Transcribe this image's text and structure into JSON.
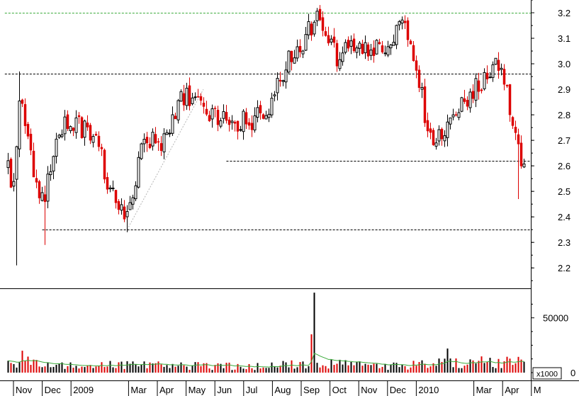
{
  "chart_data": [
    {
      "type": "candlestick",
      "panel": "price",
      "ylim": [
        2.12,
        3.25
      ],
      "y_ticks": [
        "2.2",
        "2.3",
        "2.4",
        "2.5",
        "2.6",
        "2.7",
        "2.8",
        "2.9",
        "3.0",
        "3.1",
        "3.2"
      ],
      "x_ticks": [
        {
          "label": "Nov",
          "month_index": 0
        },
        {
          "label": "Dec",
          "month_index": 1
        },
        {
          "label": "2009",
          "month_index": 2
        },
        {
          "label": "Mar",
          "month_index": 4
        },
        {
          "label": "Apr",
          "month_index": 5
        },
        {
          "label": "May",
          "month_index": 6
        },
        {
          "label": "Jun",
          "month_index": 7
        },
        {
          "label": "Jul",
          "month_index": 8
        },
        {
          "label": "Aug",
          "month_index": 9
        },
        {
          "label": "Sep",
          "month_index": 10
        },
        {
          "label": "Oct",
          "month_index": 11
        },
        {
          "label": "Nov",
          "month_index": 12
        },
        {
          "label": "Dec",
          "month_index": 13
        },
        {
          "label": "2010",
          "month_index": 14
        },
        {
          "label": "Mar",
          "month_index": 16
        },
        {
          "label": "Apr",
          "month_index": 17
        },
        {
          "label": "M",
          "month_index": 18
        }
      ],
      "price_path_monthly": [
        [
          -0.2,
          2.6
        ],
        [
          0.0,
          2.5
        ],
        [
          0.2,
          2.85
        ],
        [
          0.5,
          2.7
        ],
        [
          0.9,
          2.48
        ],
        [
          1.0,
          2.45
        ],
        [
          1.2,
          2.55
        ],
        [
          1.5,
          2.7
        ],
        [
          1.8,
          2.78
        ],
        [
          2.2,
          2.76
        ],
        [
          2.6,
          2.72
        ],
        [
          3.0,
          2.65
        ],
        [
          3.3,
          2.52
        ],
        [
          3.6,
          2.46
        ],
        [
          3.8,
          2.38
        ],
        [
          4.1,
          2.45
        ],
        [
          4.4,
          2.68
        ],
        [
          4.8,
          2.72
        ],
        [
          5.1,
          2.7
        ],
        [
          5.4,
          2.76
        ],
        [
          5.8,
          2.88
        ],
        [
          6.2,
          2.86
        ],
        [
          6.6,
          2.82
        ],
        [
          7.0,
          2.8
        ],
        [
          7.5,
          2.78
        ],
        [
          8.0,
          2.77
        ],
        [
          8.4,
          2.79
        ],
        [
          8.8,
          2.8
        ],
        [
          9.2,
          2.92
        ],
        [
          9.6,
          3.02
        ],
        [
          10.0,
          3.08
        ],
        [
          10.4,
          3.16
        ],
        [
          10.6,
          3.19
        ],
        [
          10.9,
          3.1
        ],
        [
          11.2,
          3.02
        ],
        [
          11.6,
          3.06
        ],
        [
          12.0,
          3.08
        ],
        [
          12.4,
          3.06
        ],
        [
          12.8,
          3.08
        ],
        [
          13.2,
          3.1
        ],
        [
          13.5,
          3.14
        ],
        [
          13.8,
          3.08
        ],
        [
          14.1,
          2.92
        ],
        [
          14.4,
          2.72
        ],
        [
          14.8,
          2.7
        ],
        [
          15.2,
          2.78
        ],
        [
          15.6,
          2.86
        ],
        [
          16.0,
          2.9
        ],
        [
          16.4,
          2.96
        ],
        [
          16.8,
          2.98
        ],
        [
          17.1,
          2.95
        ],
        [
          17.4,
          2.72
        ],
        [
          17.6,
          2.62
        ],
        [
          17.8,
          2.58
        ]
      ],
      "spikes": [
        {
          "month_index": 0.08,
          "low": 2.21
        },
        {
          "month_index": 0.18,
          "high": 2.97
        },
        {
          "month_index": 1.05,
          "low": 2.29
        },
        {
          "month_index": 3.9,
          "low": 2.34
        },
        {
          "month_index": 10.6,
          "high": 3.21
        },
        {
          "month_index": 13.6,
          "high": 3.19
        },
        {
          "month_index": 17.5,
          "low": 2.47
        }
      ],
      "support_lines": [
        {
          "value": 3.2,
          "from_month": -0.3,
          "to_month": 18.2,
          "color": "#3aaa3a"
        },
        {
          "value": 2.96,
          "from_month": -0.3,
          "to_month": 18.2,
          "color": "#000000"
        },
        {
          "value": 2.62,
          "from_month": 7.4,
          "to_month": 18.2,
          "color": "#000000"
        },
        {
          "value": 2.35,
          "from_month": 1.0,
          "to_month": 18.2,
          "color": "#000000"
        }
      ],
      "trend_lines": [
        {
          "from": [
            3.95,
            2.35
          ],
          "to": [
            6.6,
            2.9
          ],
          "color": "#b5b5b5"
        }
      ],
      "colors": {
        "up": "#000000",
        "down": "#dd0000",
        "line_green": "#3aaa3a"
      }
    },
    {
      "type": "bar",
      "panel": "volume",
      "ylim": [
        0,
        75000
      ],
      "y_ticks": [
        "50000",
        "0"
      ],
      "unit_label": "x1000",
      "volume_path_monthly": [
        [
          -0.2,
          7500
        ],
        [
          0.3,
          11000
        ],
        [
          1.0,
          7000
        ],
        [
          2.0,
          6000
        ],
        [
          3.0,
          6500
        ],
        [
          4.0,
          7000
        ],
        [
          5.0,
          7500
        ],
        [
          6.0,
          6500
        ],
        [
          7.0,
          6000
        ],
        [
          8.0,
          5500
        ],
        [
          9.0,
          6500
        ],
        [
          10.0,
          8000
        ],
        [
          10.5,
          10000
        ],
        [
          11.0,
          8000
        ],
        [
          12.0,
          6500
        ],
        [
          13.0,
          6000
        ],
        [
          14.0,
          7000
        ],
        [
          15.0,
          9000
        ],
        [
          16.0,
          9500
        ],
        [
          17.0,
          9000
        ],
        [
          18.0,
          11000
        ]
      ],
      "volume_spikes": [
        {
          "month_index": 10.45,
          "value": 73000
        },
        {
          "month_index": 10.3,
          "value": 35000
        },
        {
          "month_index": 15.1,
          "value": 22000
        },
        {
          "month_index": 17.8,
          "value": 26000
        },
        {
          "month_index": 0.3,
          "value": 20000
        }
      ],
      "moving_average_color": "#3aaa3a"
    }
  ]
}
